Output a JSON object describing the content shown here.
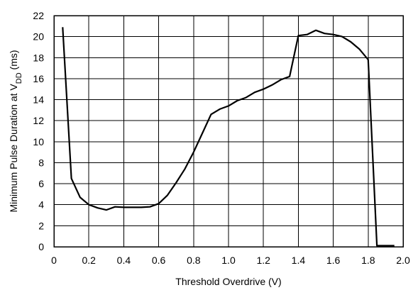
{
  "chart_data": {
    "type": "line",
    "title": "",
    "xlabel": "Threshold Overdrive (V)",
    "ylabel_main": "Minimum Pulse Duration at V",
    "ylabel_sub": "DD",
    "ylabel_unit": " (ms)",
    "xlim": [
      0,
      2.0
    ],
    "ylim": [
      0,
      22
    ],
    "x_ticks": [
      "0",
      "0.2",
      "0.4",
      "0.6",
      "0.8",
      "1.0",
      "1.2",
      "1.4",
      "1.6",
      "1.8",
      "2.0"
    ],
    "y_ticks": [
      "0",
      "2",
      "4",
      "6",
      "8",
      "10",
      "12",
      "14",
      "16",
      "18",
      "20",
      "22"
    ],
    "grid": true,
    "legend": "none",
    "series": [
      {
        "x": [
          0.05,
          0.1,
          0.15,
          0.2,
          0.25,
          0.3,
          0.35,
          0.4,
          0.45,
          0.5,
          0.55,
          0.6,
          0.65,
          0.7,
          0.75,
          0.8,
          0.85,
          0.9,
          0.95,
          1.0,
          1.05,
          1.1,
          1.15,
          1.2,
          1.25,
          1.3,
          1.35,
          1.4,
          1.45,
          1.5,
          1.55,
          1.6,
          1.65,
          1.7,
          1.75,
          1.8,
          1.85,
          1.9,
          1.95
        ],
        "y": [
          20.9,
          6.5,
          4.7,
          4.0,
          3.7,
          3.5,
          3.8,
          3.75,
          3.75,
          3.75,
          3.8,
          4.1,
          4.9,
          6.1,
          7.4,
          9.0,
          10.8,
          12.6,
          13.1,
          13.4,
          13.9,
          14.2,
          14.7,
          15.0,
          15.4,
          15.9,
          16.2,
          20.1,
          20.2,
          20.6,
          20.3,
          20.2,
          20.0,
          19.5,
          18.8,
          17.8,
          0.1,
          0.1,
          0.1
        ]
      }
    ]
  }
}
